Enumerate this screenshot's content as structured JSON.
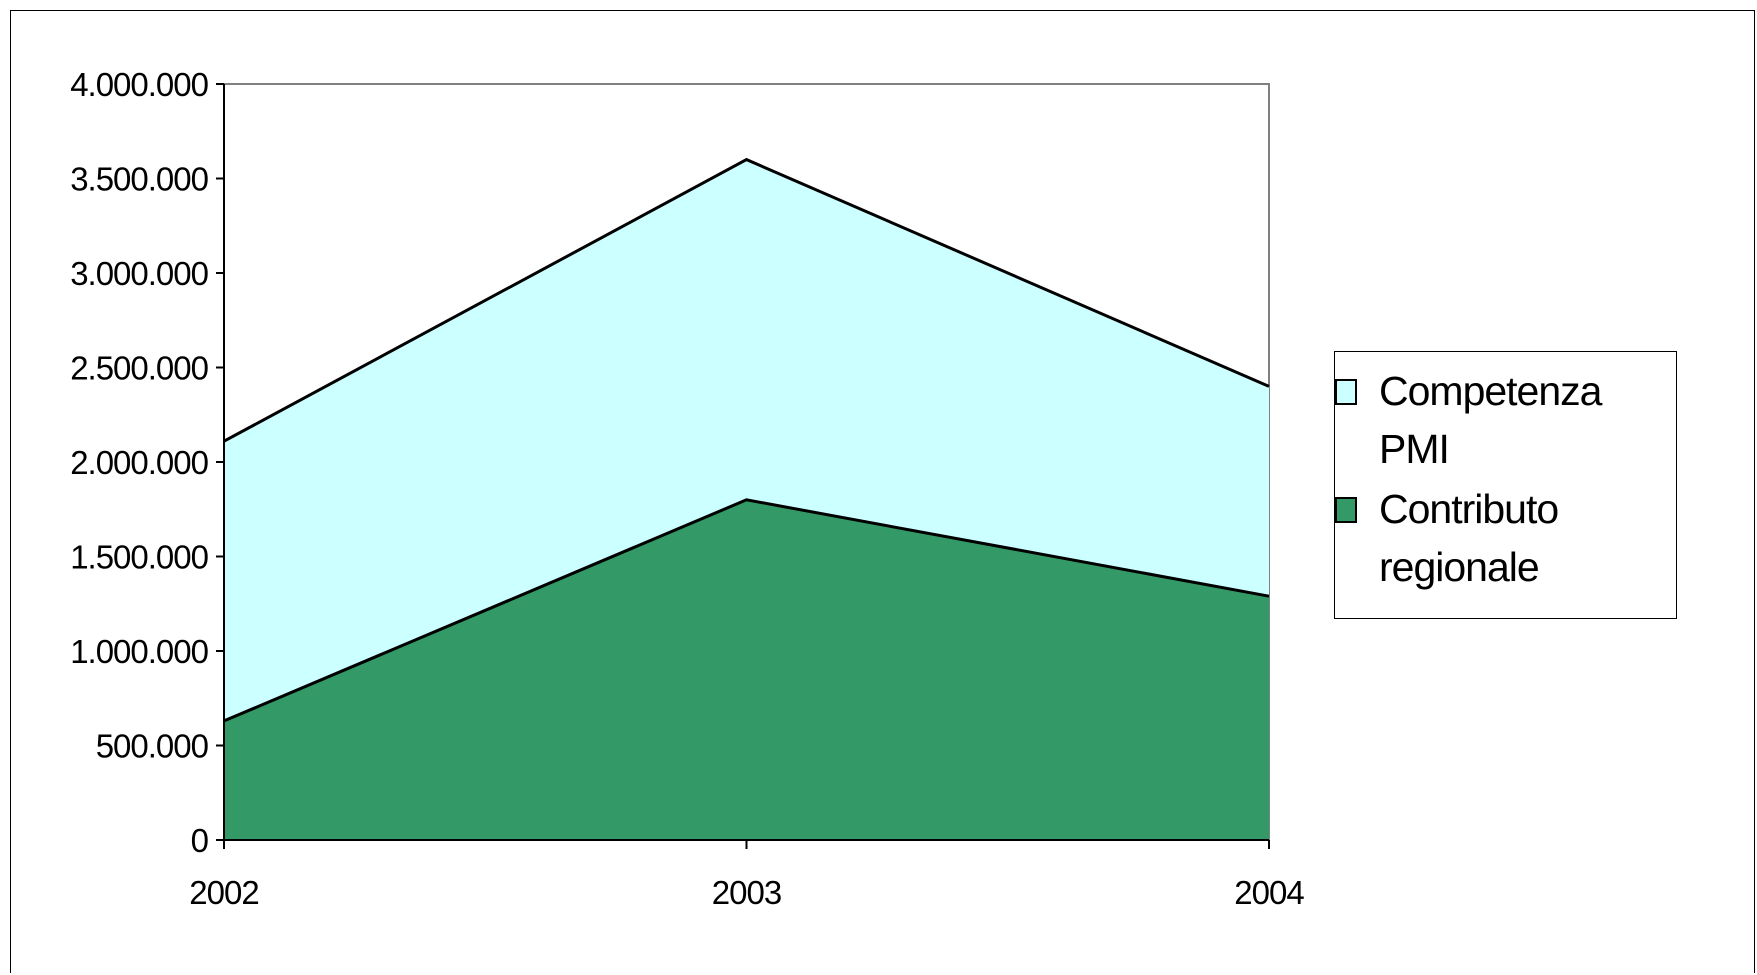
{
  "chart_data": {
    "type": "area",
    "stacked": true,
    "categories": [
      "2002",
      "2003",
      "2004"
    ],
    "series": [
      {
        "name": "Contributo regionale",
        "values": [
          630000,
          1800000,
          1290000
        ],
        "color": "#339966"
      },
      {
        "name": "Competenza PMI",
        "values": [
          1480000,
          1800000,
          1110000
        ],
        "color": "#CCFFFF"
      }
    ],
    "ylim": [
      0,
      4000000
    ],
    "yticks": [
      0,
      500000,
      1000000,
      1500000,
      2000000,
      2500000,
      3000000,
      3500000,
      4000000
    ],
    "ytick_labels": [
      "0",
      "500.000",
      "1.000.000",
      "1.500.000",
      "2.000.000",
      "2.500.000",
      "3.000.000",
      "3.500.000",
      "4.000.000"
    ],
    "grid": false,
    "legend_position": "right",
    "legend": [
      {
        "label_line1": "Competenza",
        "label_line2": "PMI",
        "color": "#CCFFFF"
      },
      {
        "label_line1": "Contributo",
        "label_line2": "regionale",
        "color": "#339966"
      }
    ],
    "title": "",
    "xlabel": "",
    "ylabel": ""
  }
}
